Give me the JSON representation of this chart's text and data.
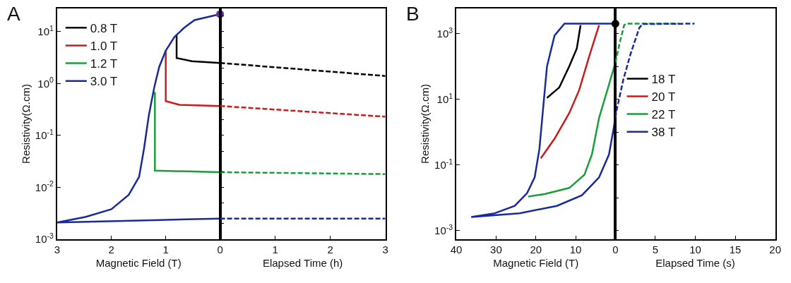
{
  "chart_data": [
    {
      "type": "line",
      "title": "A",
      "xlabel": "Magnetic Field (T)",
      "ylabel": "Resistivity(Ω.cm)",
      "log": "y",
      "legend": "top left",
      "xlim": [
        3,
        0
      ],
      "xticks": [
        3,
        2,
        1,
        0
      ],
      "ylim": [
        0.001,
        28
      ],
      "yticks": [
        {
          "value": 0.001,
          "label": "10$^{-3}$"
        },
        {
          "value": 0.01,
          "label": "10$^{-2}$"
        },
        {
          "value": 0.1,
          "label": "10$^{-1}$"
        },
        {
          "value": 1,
          "label": "10$^{0}$"
        },
        {
          "value": 10,
          "label": "10$^{1}$"
        }
      ],
      "series": [
        {
          "name": "0.8 T",
          "color": "#000000",
          "x": [
            0.8,
            0.8,
            0.52,
            0
          ],
          "values": [
            8.5,
            3.1,
            2.7,
            2.5
          ]
        },
        {
          "name": "1.0 T",
          "color": "#cc1a1a",
          "x": [
            1.0,
            1.0,
            0.75,
            0
          ],
          "values": [
            4.3,
            0.46,
            0.39,
            0.37
          ]
        },
        {
          "name": "1.2 T",
          "color": "#1a9e3a",
          "x": [
            1.2,
            1.2,
            0
          ],
          "values": [
            0.69,
            0.021,
            0.0196
          ]
        },
        {
          "name": "3.0 T",
          "color": "#1a2a9a",
          "x": [
            0,
            1.49,
            3.0,
            2.47,
            2.0,
            1.68,
            1.49,
            1.4,
            1.31,
            1.21,
            1.12,
            1.0,
            0.84,
            0.66,
            0.47,
            0
          ],
          "values": [
            0.0025,
            0.0023,
            0.0021,
            0.0027,
            0.0038,
            0.0072,
            0.016,
            0.056,
            0.25,
            0.86,
            2.1,
            4.3,
            7.9,
            11.9,
            16.7,
            21.8
          ]
        },
        {
          "type": "scatter",
          "marker": "circle",
          "color": "#6a2aa0",
          "x": [
            0
          ],
          "values": [
            21.8
          ]
        }
      ]
    },
    {
      "type": "line",
      "xlabel": "Elapsed Time (h)",
      "log": "y",
      "tick_labels": "x",
      "xlim": [
        0,
        3
      ],
      "xticks": [
        1,
        2,
        3
      ],
      "ylim": [
        0.001,
        28
      ],
      "series": [
        {
          "color": "#000000",
          "line_style": "dashed",
          "x": [
            0,
            3
          ],
          "values": [
            2.5,
            1.4
          ]
        },
        {
          "color": "#cc1a1a",
          "line_style": "dashed",
          "x": [
            0,
            3
          ],
          "values": [
            0.37,
            0.23
          ]
        },
        {
          "color": "#1a9e3a",
          "line_style": "dashed",
          "x": [
            0,
            3
          ],
          "values": [
            0.0196,
            0.018
          ]
        },
        {
          "color": "#1a2a9a",
          "line_style": "dashed",
          "x": [
            0,
            3
          ],
          "values": [
            0.0025,
            0.0025
          ]
        }
      ]
    },
    {
      "type": "line",
      "title": "B",
      "xlabel": "Magnetic Field (T)",
      "ylabel": "Resistivity(Ω.cm)",
      "log": "y",
      "legend": "right",
      "xlim": [
        40,
        0
      ],
      "xticks": [
        40,
        30,
        20,
        10,
        0
      ],
      "ylim": [
        0.00055,
        5800
      ],
      "yticks": [
        {
          "value": 0.001,
          "label": "10$^{-3}$"
        },
        {
          "value": 0.1,
          "label": "10$^{-1}$"
        },
        {
          "value": 10,
          "label": "10$^{1}$"
        },
        {
          "value": 1000,
          "label": "10$^{3}$"
        }
      ],
      "series": [
        {
          "name": "18 T",
          "color": "#000000",
          "x": [
            17.2,
            14.1,
            11.6,
            9.7,
            8.75
          ],
          "values": [
            11,
            23,
            100,
            350,
            1800
          ]
        },
        {
          "name": "20 T",
          "color": "#cc1a1a",
          "x": [
            18.75,
            15.3,
            11.6,
            9.1,
            6.6,
            4.1
          ],
          "values": [
            0.16,
            0.63,
            3.8,
            19,
            200,
            1800
          ]
        },
        {
          "name": "22 T",
          "color": "#1a9e3a",
          "x": [
            21.9,
            17.8,
            11.6,
            7.8,
            5.9,
            4.1,
            2.2,
            0
          ],
          "values": [
            0.011,
            0.013,
            0.02,
            0.05,
            0.21,
            2.7,
            16,
            130
          ]
        },
        {
          "name": "38 T",
          "color": "#1a2a9a",
          "x": [
            0,
            0.44,
            1.6,
            4.1,
            8.4,
            14.7,
            24.1,
            36.25,
            30.3,
            25.3,
            22.2,
            20.3,
            19.1,
            18.1,
            17.2,
            15.3,
            12.8,
            0
          ],
          "values": [
            2.7,
            1.3,
            0.21,
            0.042,
            0.012,
            0.0057,
            0.0034,
            0.0026,
            0.0034,
            0.0057,
            0.014,
            0.042,
            0.31,
            6.6,
            100,
            870,
            2000,
            2000
          ]
        },
        {
          "type": "scatter",
          "marker": "circle",
          "color": "#000000",
          "x": [
            0
          ],
          "values": [
            2000
          ]
        }
      ]
    },
    {
      "type": "line",
      "xlabel": "Elapsed Time (s)",
      "log": "y",
      "tick_labels": "x",
      "xlim": [
        0,
        20
      ],
      "xticks": [
        5,
        10,
        15,
        20
      ],
      "ylim": [
        0.00055,
        5800
      ],
      "series": [
        {
          "color": "#1a9e3a",
          "line_style": "dashed",
          "x": [
            0,
            0.6,
            1.1,
            1.4,
            8
          ],
          "values": [
            130,
            600,
            1800,
            2000,
            2000
          ]
        },
        {
          "color": "#1a2a9a",
          "line_style": "dashed",
          "x": [
            0,
            0.15,
            1.0,
            1.9,
            3.0,
            3.4,
            9.9
          ],
          "values": [
            2.7,
            4.6,
            40,
            240,
            1500,
            1950,
            2000
          ]
        }
      ]
    }
  ]
}
